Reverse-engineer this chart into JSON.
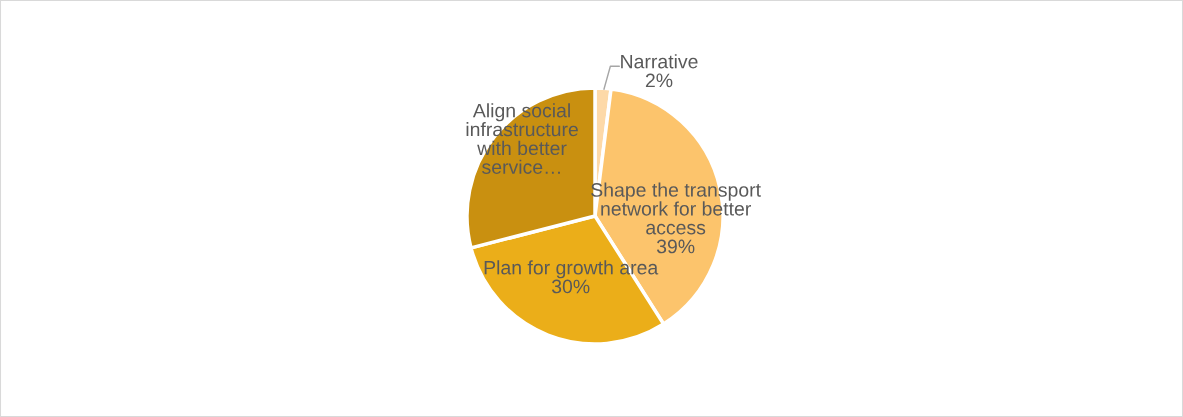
{
  "chart_data": {
    "type": "pie",
    "categories": [
      "Narrative",
      "Shape the transport\nnetwork for better\naccess",
      "Plan for growth area",
      "Align social\ninfrastructure\nwith better\nservice…"
    ],
    "values": [
      2,
      39,
      30,
      29
    ],
    "value_labels": [
      "2%",
      "39%",
      "30%",
      null
    ],
    "colors": [
      "#fdd9a8",
      "#fcc46c",
      "#ebae19",
      "#c99010"
    ]
  }
}
